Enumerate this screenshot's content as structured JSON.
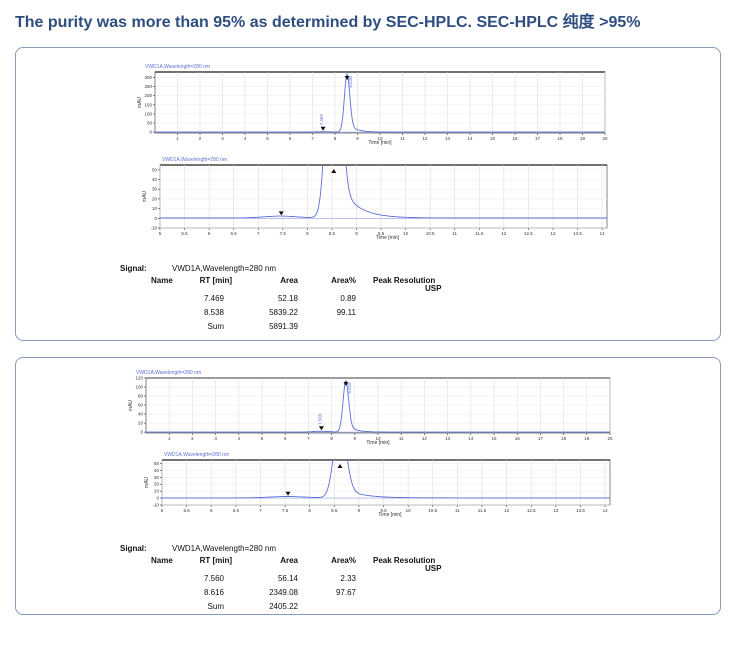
{
  "title": "The purity was more than 95% as determined by SEC-HPLC.   SEC-HPLC 纯度 >95%",
  "colors": {
    "trace": "#5b6fd6",
    "panel_border": "#8a9abb",
    "title": "#2d4e7e"
  },
  "chart_data": [
    {
      "panel": 1,
      "charts": [
        {
          "type": "line",
          "title": "VWD1A,Wavelength=280 nm",
          "xlabel": "Time [min]",
          "ylabel": "mAU",
          "xlim": [
            0,
            20
          ],
          "ylim": [
            -5,
            330
          ],
          "xticks": [
            1,
            2,
            3,
            4,
            5,
            6,
            7,
            8,
            9,
            10,
            11,
            12,
            13,
            14,
            15,
            16,
            17,
            18,
            19,
            20
          ],
          "yticks": [
            0,
            50,
            100,
            150,
            200,
            250,
            300
          ],
          "peaks": [
            {
              "rt": 7.469,
              "height": 2,
              "label": "7.469"
            },
            {
              "rt": 8.538,
              "height": 320,
              "label": "8.538"
            }
          ]
        },
        {
          "type": "line",
          "title": "VWD1A,Wavelength=280 nm",
          "xlabel": "Time [min]",
          "ylabel": "mAU",
          "xlim": [
            5,
            14.1
          ],
          "ylim": [
            -10,
            55
          ],
          "xticks": [
            5,
            5.5,
            6,
            6.5,
            7,
            7.5,
            8,
            8.5,
            9,
            9.5,
            10,
            10.5,
            11,
            11.5,
            12,
            12.5,
            13,
            13.5,
            14
          ],
          "yticks": [
            -10,
            0,
            10,
            20,
            30,
            40,
            50
          ],
          "peaks": [
            {
              "rt": 7.469,
              "height": 2
            },
            {
              "rt": 8.538,
              "height": 320
            }
          ]
        }
      ],
      "table": {
        "signal_label": "Signal:",
        "signal": "VWD1A,Wavelength=280 nm",
        "headers": [
          "Name",
          "RT [min]",
          "Area",
          "Area%",
          "Peak Resolution",
          "USP"
        ],
        "rows": [
          [
            "",
            "7.469",
            "52.18",
            "0.89",
            ""
          ],
          [
            "",
            "8.538",
            "5839.22",
            "99.11",
            ""
          ]
        ],
        "sum_label": "Sum",
        "sum": "5891.39"
      }
    },
    {
      "panel": 2,
      "charts": [
        {
          "type": "line",
          "title": "VWD1A,Wavelength=280 nm",
          "xlabel": "Time [min]",
          "ylabel": "mAU",
          "xlim": [
            0,
            20
          ],
          "ylim": [
            -2,
            120
          ],
          "xticks": [
            1,
            2,
            3,
            4,
            5,
            6,
            7,
            8,
            9,
            10,
            11,
            12,
            13,
            14,
            15,
            16,
            17,
            18,
            19,
            20
          ],
          "yticks": [
            0,
            20,
            40,
            60,
            80,
            100,
            120
          ],
          "peaks": [
            {
              "rt": 7.56,
              "height": 2,
              "label": "7.560"
            },
            {
              "rt": 8.616,
              "height": 115,
              "label": "8.616"
            }
          ]
        },
        {
          "type": "line",
          "title": "VWD1A,Wavelength=280 nm",
          "xlabel": "Time [min]",
          "ylabel": "mAU",
          "xlim": [
            5,
            14.1
          ],
          "ylim": [
            -10,
            55
          ],
          "xticks": [
            5,
            5.5,
            6,
            6.5,
            7,
            7.5,
            8,
            8.5,
            9,
            9.5,
            10,
            10.5,
            11,
            11.5,
            12,
            12.5,
            13,
            13.5,
            14
          ],
          "yticks": [
            -10,
            0,
            10,
            20,
            30,
            40,
            50
          ],
          "peaks": [
            {
              "rt": 7.56,
              "height": 2
            },
            {
              "rt": 8.616,
              "height": 115
            }
          ]
        }
      ],
      "table": {
        "signal_label": "Signal:",
        "signal": "VWD1A,Wavelength=280 nm",
        "headers": [
          "Name",
          "RT [min]",
          "Area",
          "Area%",
          "Peak Resolution",
          "USP"
        ],
        "rows": [
          [
            "",
            "7.560",
            "56.14",
            "2.33",
            ""
          ],
          [
            "",
            "8.616",
            "2349.08",
            "97.67",
            ""
          ]
        ],
        "sum_label": "Sum",
        "sum": "2405.22"
      }
    }
  ]
}
